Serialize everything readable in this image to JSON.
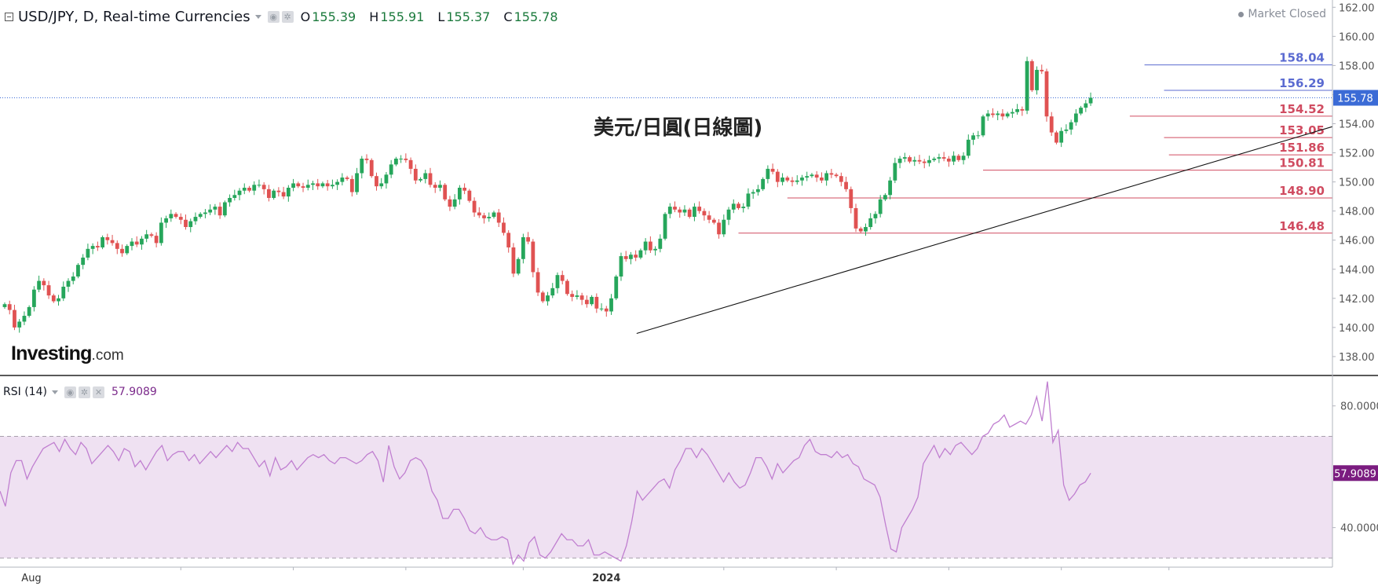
{
  "header": {
    "symbol": "USD/JPY, D, Real-time Currencies",
    "open_label": "O",
    "open": "155.39",
    "high_label": "H",
    "high": "155.91",
    "low_label": "L",
    "low": "155.37",
    "close_label": "C",
    "close": "155.78",
    "market_status": "Market Closed"
  },
  "chart_title": "美元/日圓(日線圖)",
  "rsi_header": {
    "label": "RSI (14)",
    "value": "57.9089"
  },
  "logo": {
    "brand": "Investing",
    "tld": ".com"
  },
  "colors": {
    "up": "#26a65b",
    "down": "#e05252",
    "rsi_line": "#c07fd0",
    "rsi_band": "#efe1f2",
    "support": "#d04c61",
    "resistance": "#5b6bd1",
    "last_price": "#3b6bd6",
    "rsi_last": "#7b1c80"
  },
  "chart_data": [
    {
      "type": "candlestick",
      "title": "美元/日圓(日線圖)",
      "symbol": "USD/JPY",
      "timeframe": "D",
      "y_ticks": [
        "138.00",
        "140.00",
        "142.00",
        "144.00",
        "146.00",
        "148.00",
        "150.00",
        "152.00",
        "154.00",
        "156.00",
        "158.00",
        "160.00",
        "162.00"
      ],
      "ylim": [
        136.7,
        162.5
      ],
      "x_labels": [
        "Aug",
        "2024"
      ],
      "x_label_index": [
        0,
        123
      ],
      "last_price": 155.78,
      "last_price_label": "155.78",
      "closes": [
        141.6,
        141.2,
        140.0,
        140.4,
        140.8,
        141.4,
        142.6,
        143.2,
        142.9,
        142.2,
        141.8,
        142.0,
        142.8,
        143.2,
        143.5,
        144.3,
        144.8,
        145.4,
        145.6,
        145.5,
        146.2,
        146.0,
        145.8,
        145.4,
        145.1,
        145.6,
        145.9,
        145.7,
        146.1,
        146.4,
        146.3,
        145.8,
        147.2,
        147.5,
        147.8,
        147.6,
        147.4,
        146.9,
        147.3,
        147.6,
        147.8,
        147.9,
        148.1,
        148.3,
        147.7,
        148.6,
        148.9,
        149.1,
        149.4,
        149.6,
        149.4,
        149.8,
        149.8,
        149.5,
        148.9,
        149.4,
        149.3,
        149.0,
        149.6,
        149.9,
        149.7,
        149.6,
        149.8,
        149.9,
        149.7,
        149.9,
        149.7,
        149.8,
        150.0,
        150.3,
        150.2,
        149.3,
        150.6,
        151.6,
        151.5,
        150.4,
        149.7,
        149.9,
        150.5,
        151.2,
        151.6,
        151.6,
        151.5,
        150.9,
        150.1,
        150.2,
        150.6,
        149.8,
        149.6,
        149.8,
        148.8,
        148.3,
        148.8,
        149.6,
        149.4,
        148.7,
        147.9,
        147.7,
        147.5,
        147.6,
        147.9,
        147.2,
        146.5,
        145.5,
        143.7,
        144.7,
        146.2,
        145.9,
        143.8,
        142.4,
        141.8,
        142.2,
        142.7,
        143.6,
        143.2,
        142.3,
        142.1,
        142.2,
        141.9,
        141.6,
        142.1,
        141.3,
        141.3,
        141.1,
        142.0,
        143.5,
        144.9,
        144.7,
        145.0,
        144.8,
        145.3,
        145.9,
        145.3,
        145.4,
        146.1,
        147.8,
        148.3,
        148.1,
        147.9,
        148.1,
        147.6,
        148.3,
        148.0,
        147.7,
        147.4,
        147.2,
        146.4,
        147.4,
        148.1,
        148.5,
        148.2,
        148.3,
        149.2,
        149.3,
        149.5,
        150.2,
        150.9,
        150.7,
        150.0,
        150.3,
        150.1,
        150.0,
        150.1,
        150.3,
        150.4,
        150.5,
        150.3,
        150.1,
        150.6,
        150.5,
        150.4,
        150.0,
        149.5,
        148.2,
        146.8,
        146.6,
        146.9,
        147.5,
        147.8,
        148.8,
        149.1,
        150.1,
        151.3,
        151.6,
        151.7,
        151.4,
        151.5,
        151.4,
        151.3,
        151.5,
        151.6,
        151.7,
        151.6,
        151.4,
        151.8,
        151.5,
        151.8,
        152.9,
        153.2,
        153.2,
        154.5,
        154.7,
        154.6,
        154.7,
        154.5,
        154.7,
        154.8,
        155.0,
        154.9,
        158.3,
        156.3,
        157.7,
        157.6,
        154.5,
        153.4,
        152.7,
        153.5,
        153.6,
        154.1,
        154.7,
        155.1,
        155.4,
        155.78
      ],
      "support_levels": [
        154.52,
        153.05,
        151.86,
        150.81,
        148.9,
        146.48
      ],
      "resistance_levels": [
        158.04,
        156.29
      ],
      "trendline": [
        {
          "index": 134,
          "value": 139.75
        },
        {
          "index": 238,
          "value": 153.8
        }
      ]
    },
    {
      "type": "line",
      "title": "RSI (14)",
      "series": [
        {
          "name": "RSI (14)",
          "last": 57.9089
        }
      ],
      "y_ticks": [
        "40.0000",
        "80.0000"
      ],
      "ylim": [
        27,
        90
      ],
      "band": [
        30,
        70
      ],
      "values": [
        52,
        47,
        58,
        62,
        62,
        56,
        60,
        63,
        66,
        67,
        68,
        65,
        69,
        66,
        64,
        68,
        66,
        61,
        63,
        65,
        67,
        65,
        62,
        66,
        65,
        60,
        62,
        59,
        62,
        65,
        67,
        62,
        64,
        65,
        65,
        62,
        64,
        61,
        63,
        65,
        63,
        65,
        67,
        65,
        68,
        66,
        66,
        63,
        60,
        62,
        57,
        63,
        59,
        60,
        62,
        59,
        61,
        63,
        64,
        63,
        64,
        62,
        61,
        63,
        63,
        62,
        61,
        62,
        64,
        65,
        62,
        55,
        67,
        60,
        56,
        58,
        62,
        63,
        62,
        59,
        52,
        49,
        43,
        43,
        46,
        46,
        43,
        39,
        38,
        40,
        37,
        36,
        36,
        37,
        36,
        28,
        31,
        29,
        35,
        37,
        31,
        30,
        32,
        35,
        38,
        36,
        36,
        34,
        34,
        36,
        31,
        31,
        32,
        31,
        30,
        29,
        34,
        42,
        52,
        49,
        51,
        53,
        55,
        56,
        53,
        59,
        62,
        66,
        66,
        63,
        66,
        64,
        61,
        58,
        55,
        58,
        55,
        53,
        54,
        58,
        63,
        63,
        60,
        56,
        61,
        58,
        60,
        62,
        63,
        67,
        69,
        65,
        64,
        64,
        63,
        65,
        63,
        64,
        61,
        60,
        56,
        55,
        54,
        50,
        41,
        33,
        32,
        40,
        43,
        46,
        50,
        61,
        64,
        67,
        63,
        66,
        64,
        67,
        68,
        66,
        64,
        66,
        70,
        71,
        74,
        75,
        77,
        73,
        74,
        75,
        74,
        77,
        83,
        75,
        88,
        68,
        72,
        54,
        49,
        51,
        54,
        55,
        57.9089
      ]
    }
  ]
}
